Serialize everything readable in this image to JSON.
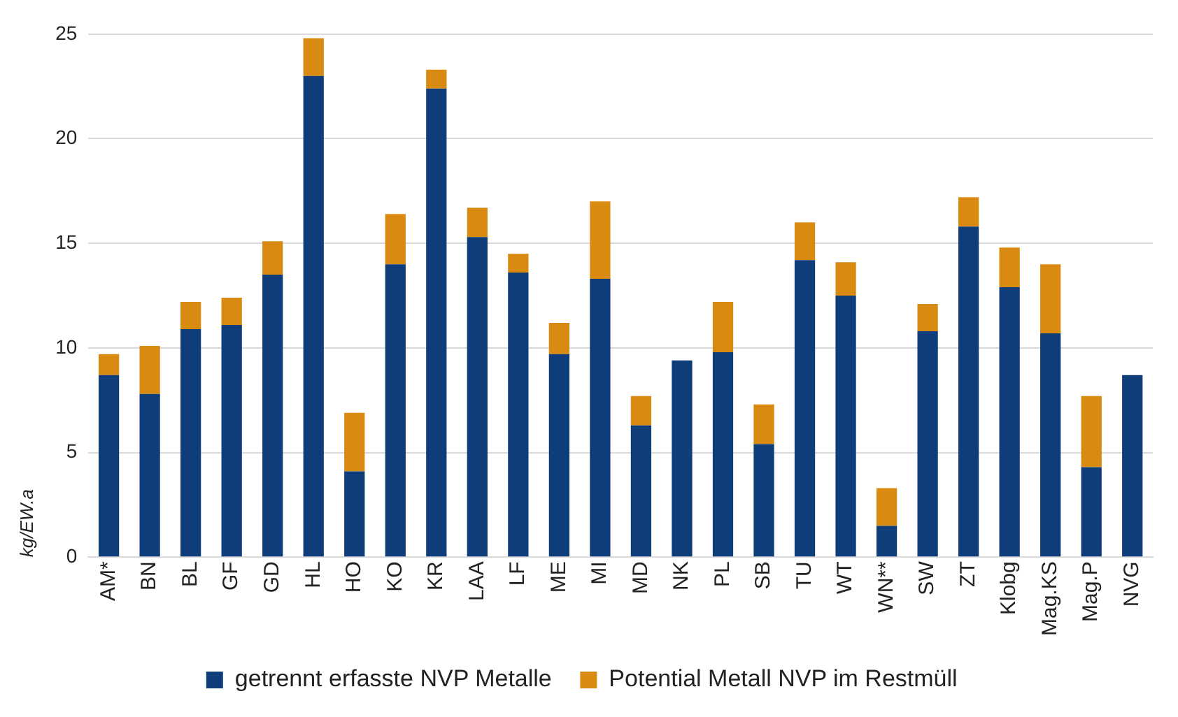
{
  "chart_data": {
    "type": "bar",
    "stacked": true,
    "ylabel": "kg/EW.a",
    "categories": [
      "AM*",
      "BN",
      "BL",
      "GF",
      "GD",
      "HL",
      "HO",
      "KO",
      "KR",
      "LAA",
      "LF",
      "ME",
      "MI",
      "MD",
      "NK",
      "PL",
      "SB",
      "TU",
      "WT",
      "WN**",
      "SW",
      "ZT",
      "Klobg",
      "Mag.KS",
      "Mag.P",
      "NVG"
    ],
    "series": [
      {
        "name": "getrennt erfasste NVP Metalle",
        "color": "#0f3d7a",
        "values": [
          8.7,
          7.8,
          10.9,
          11.1,
          13.5,
          23.0,
          4.1,
          14.0,
          22.4,
          15.3,
          13.6,
          9.7,
          13.3,
          6.3,
          9.4,
          9.8,
          5.4,
          14.2,
          12.5,
          1.5,
          10.8,
          15.8,
          12.9,
          10.7,
          4.3,
          8.7
        ]
      },
      {
        "name": "Potential Metall NVP im Restmüll",
        "color": "#d98a10",
        "values": [
          1.0,
          2.3,
          1.3,
          1.3,
          1.6,
          1.8,
          2.8,
          2.4,
          0.9,
          1.4,
          0.9,
          1.5,
          3.7,
          1.4,
          0,
          2.4,
          1.9,
          1.8,
          1.6,
          1.8,
          1.3,
          1.4,
          1.9,
          3.3,
          3.4,
          0
        ]
      }
    ],
    "ylim": [
      0,
      25
    ],
    "yticks": [
      0,
      5,
      10,
      15,
      20,
      25
    ],
    "grid": "y",
    "legend": "bottom"
  }
}
